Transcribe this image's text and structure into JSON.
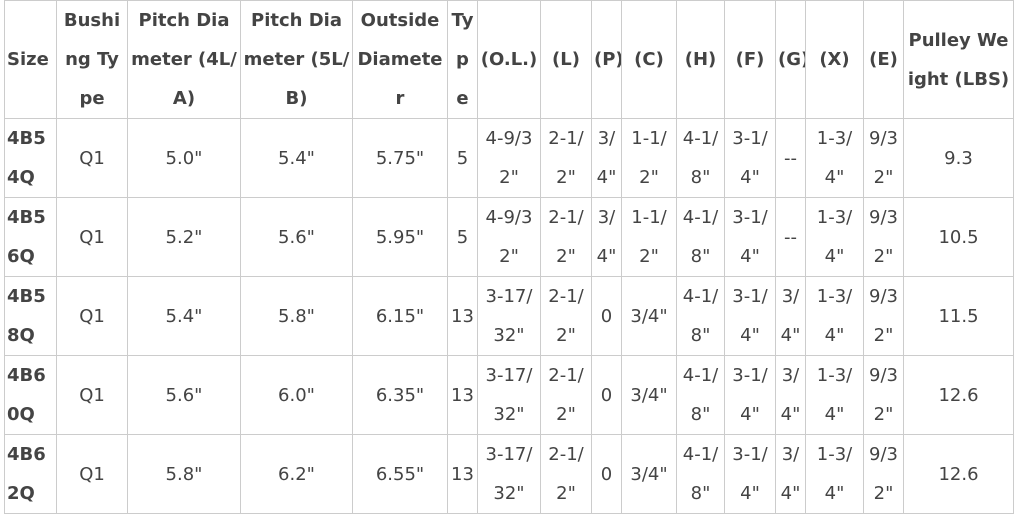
{
  "table": {
    "header": [
      "Size",
      "Bushing Type",
      "Pitch Diameter (4L/A)",
      "Pitch Diameter (5L/B)",
      "Outside Diameter",
      "Type",
      "(O.L.)",
      "(L)",
      "(P)",
      "(C)",
      "(H)",
      "(F)",
      "(G)",
      "(X)",
      "(E)",
      "Pulley Weight (LBS)"
    ],
    "rows": [
      [
        "4B54Q",
        "Q1",
        "5.0\"",
        "5.4\"",
        "5.75\"",
        "5",
        "4-9/32\"",
        "2-1/2\"",
        "3/4\"",
        "1-1/2\"",
        "4-1/8\"",
        "3-1/4\"",
        "--",
        "1-3/4\"",
        "9/32\"",
        "9.3"
      ],
      [
        "4B56Q",
        "Q1",
        "5.2\"",
        "5.6\"",
        "5.95\"",
        "5",
        "4-9/32\"",
        "2-1/2\"",
        "3/4\"",
        "1-1/2\"",
        "4-1/8\"",
        "3-1/4\"",
        "--",
        "1-3/4\"",
        "9/32\"",
        "10.5"
      ],
      [
        "4B58Q",
        "Q1",
        "5.4\"",
        "5.8\"",
        "6.15\"",
        "13",
        "3-17/32\"",
        "2-1/2\"",
        "0",
        "3/4\"",
        "4-1/8\"",
        "3-1/4\"",
        "3/4\"",
        "1-3/4\"",
        "9/32\"",
        "11.5"
      ],
      [
        "4B60Q",
        "Q1",
        "5.6\"",
        "6.0\"",
        "6.35\"",
        "13",
        "3-17/32\"",
        "2-1/2\"",
        "0",
        "3/4\"",
        "4-1/8\"",
        "3-1/4\"",
        "3/4\"",
        "1-3/4\"",
        "9/32\"",
        "12.6"
      ],
      [
        "4B62Q",
        "Q1",
        "5.8\"",
        "6.2\"",
        "6.55\"",
        "13",
        "3-17/32\"",
        "2-1/2\"",
        "0",
        "3/4\"",
        "4-1/8\"",
        "3-1/4\"",
        "3/4\"",
        "1-3/4\"",
        "9/32\"",
        "12.6"
      ]
    ]
  }
}
